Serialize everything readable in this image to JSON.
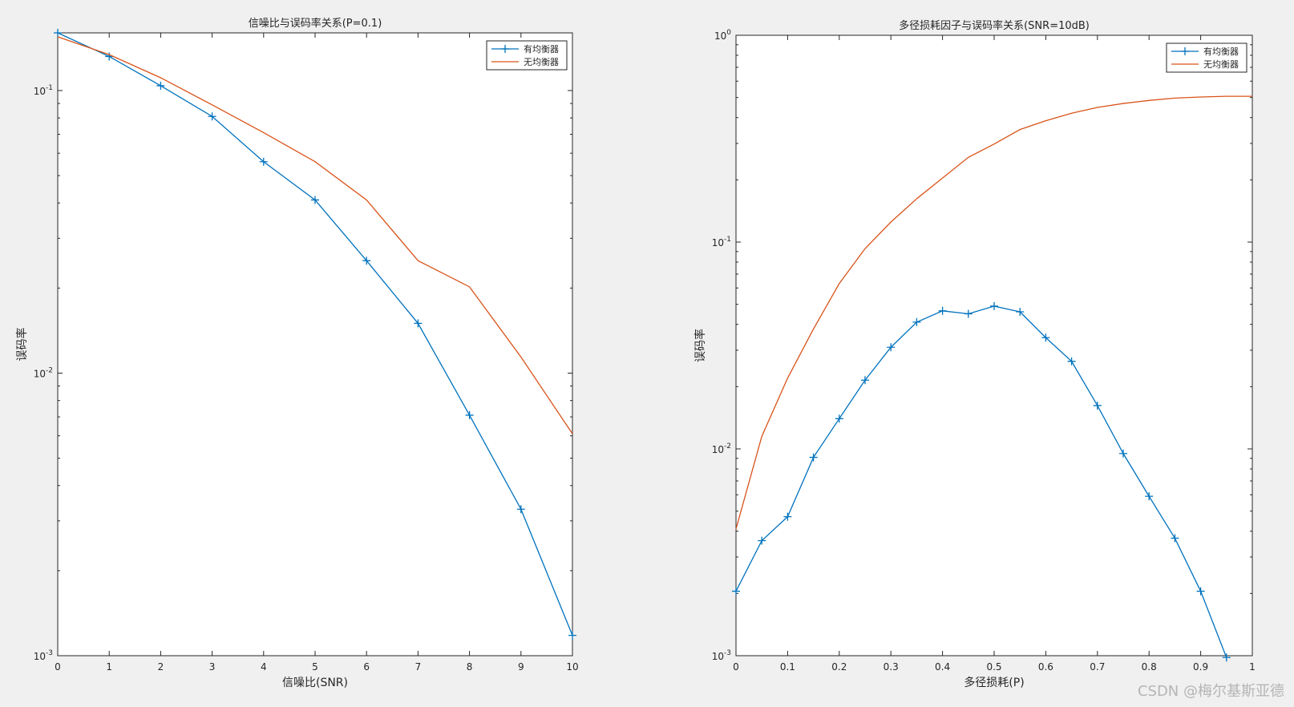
{
  "watermark": "CSDN @梅尔基斯亚德",
  "chart_data": [
    {
      "type": "line",
      "title": "信噪比与误码率关系(P=0.1)",
      "xlabel": "信噪比(SNR)",
      "ylabel": "误码率",
      "xlim": [
        0,
        10
      ],
      "ylim": [
        0.001,
        0.16
      ],
      "yscale": "log",
      "xticks": [
        0,
        1,
        2,
        3,
        4,
        5,
        6,
        7,
        8,
        9,
        10
      ],
      "xtick_labels": [
        "0",
        "1",
        "2",
        "3",
        "4",
        "5",
        "6",
        "7",
        "8",
        "9",
        "10"
      ],
      "yticks": [
        0.001,
        0.01,
        0.1
      ],
      "ytick_labels": [
        {
          "base": "10",
          "exp": "-3"
        },
        {
          "base": "10",
          "exp": "-2"
        },
        {
          "base": "10",
          "exp": "-1"
        }
      ],
      "grid": false,
      "legend_position": "top-right",
      "x": [
        0,
        1,
        2,
        3,
        4,
        5,
        6,
        7,
        8,
        9,
        10
      ],
      "series": [
        {
          "name": "有均衡器",
          "color": "#0072BD",
          "marker": "+",
          "values": [
            0.16,
            0.132,
            0.104,
            0.081,
            0.056,
            0.041,
            0.025,
            0.015,
            0.0071,
            0.0033,
            0.00118
          ]
        },
        {
          "name": "无均衡器",
          "color": "#D95319",
          "marker": "none",
          "values": [
            0.155,
            0.134,
            0.111,
            0.089,
            0.071,
            0.056,
            0.041,
            0.025,
            0.0202,
            0.0114,
            0.0061
          ]
        }
      ]
    },
    {
      "type": "line",
      "title": "多径损耗因子与误码率关系(SNR=10dB)",
      "xlabel": "多径损耗(P)",
      "ylabel": "误码率",
      "xlim": [
        0,
        1
      ],
      "ylim": [
        0.001,
        1
      ],
      "yscale": "log",
      "xticks": [
        0,
        0.1,
        0.2,
        0.3,
        0.4,
        0.5,
        0.6,
        0.7,
        0.8,
        0.9,
        1
      ],
      "xtick_labels": [
        "0",
        "0.1",
        "0.2",
        "0.3",
        "0.4",
        "0.5",
        "0.6",
        "0.7",
        "0.8",
        "0.9",
        "1"
      ],
      "yticks": [
        0.001,
        0.01,
        0.1,
        1
      ],
      "ytick_labels": [
        {
          "base": "10",
          "exp": "-3"
        },
        {
          "base": "10",
          "exp": "-2"
        },
        {
          "base": "10",
          "exp": "-1"
        },
        {
          "base": "10",
          "exp": "0"
        }
      ],
      "grid": false,
      "legend_position": "top-right",
      "x": [
        0,
        0.05,
        0.1,
        0.15,
        0.2,
        0.25,
        0.3,
        0.35,
        0.4,
        0.45,
        0.5,
        0.55,
        0.6,
        0.65,
        0.7,
        0.75,
        0.8,
        0.85,
        0.9,
        0.95
      ],
      "series": [
        {
          "name": "有均衡器",
          "color": "#0072BD",
          "marker": "+",
          "values": [
            0.00205,
            0.0036,
            0.0047,
            0.0091,
            0.014,
            0.0215,
            0.031,
            0.041,
            0.0465,
            0.045,
            0.049,
            0.046,
            0.0345,
            0.0265,
            0.0162,
            0.0095,
            0.0059,
            0.0037,
            0.00205,
            0.00098
          ]
        },
        {
          "name": "无均衡器",
          "color": "#D95319",
          "marker": "none",
          "x": [
            0,
            0.05,
            0.1,
            0.15,
            0.2,
            0.25,
            0.3,
            0.35,
            0.4,
            0.45,
            0.5,
            0.55,
            0.6,
            0.65,
            0.7,
            0.75,
            0.8,
            0.85,
            0.9,
            0.95,
            1
          ],
          "values": [
            0.0041,
            0.0115,
            0.022,
            0.038,
            0.063,
            0.093,
            0.125,
            0.162,
            0.204,
            0.257,
            0.298,
            0.35,
            0.386,
            0.42,
            0.448,
            0.468,
            0.484,
            0.497,
            0.503,
            0.507,
            0.507
          ]
        }
      ]
    }
  ]
}
